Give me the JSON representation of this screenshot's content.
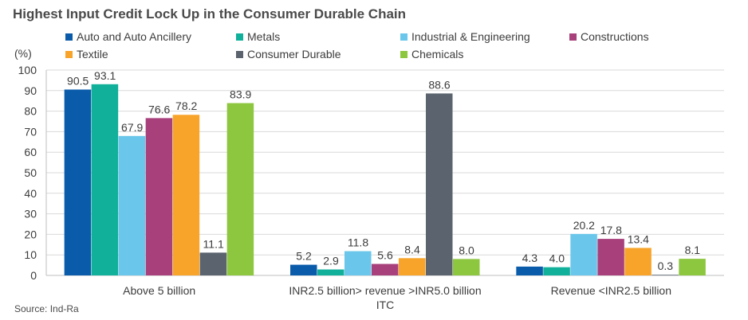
{
  "title": "Highest Input Credit Lock Up in the Consumer Durable Chain",
  "source": "Source: Ind-Ra",
  "chart_data": {
    "type": "bar",
    "ylabel": "(%)",
    "ylim": [
      0,
      100
    ],
    "yticks": [
      0,
      10,
      20,
      30,
      40,
      50,
      60,
      70,
      80,
      90,
      100
    ],
    "categories": [
      [
        "Above 5 billion"
      ],
      [
        "INR2.5 billion> revenue >INR5.0 billion",
        "ITC"
      ],
      [
        "Revenue <INR2.5 billion"
      ]
    ],
    "series": [
      {
        "name": "Auto and Auto Ancillery",
        "color": "#0a5cab",
        "values": [
          90.5,
          5.2,
          4.3
        ]
      },
      {
        "name": "Metals",
        "color": "#10b09a",
        "values": [
          93.1,
          2.9,
          4.0
        ]
      },
      {
        "name": "Industrial & Engineering",
        "color": "#6ac6ea",
        "values": [
          67.9,
          11.8,
          20.2
        ]
      },
      {
        "name": "Constructions",
        "color": "#a8407c",
        "values": [
          76.6,
          5.6,
          17.8
        ]
      },
      {
        "name": "Textile",
        "color": "#f8a42a",
        "values": [
          78.2,
          8.4,
          13.4
        ]
      },
      {
        "name": "Consumer Durable",
        "color": "#5a636e",
        "values": [
          11.1,
          88.6,
          0.3
        ]
      },
      {
        "name": "Chemicals",
        "color": "#8dc63f",
        "values": [
          83.9,
          8.0,
          8.1
        ]
      }
    ],
    "legend": "top",
    "grid": true
  }
}
